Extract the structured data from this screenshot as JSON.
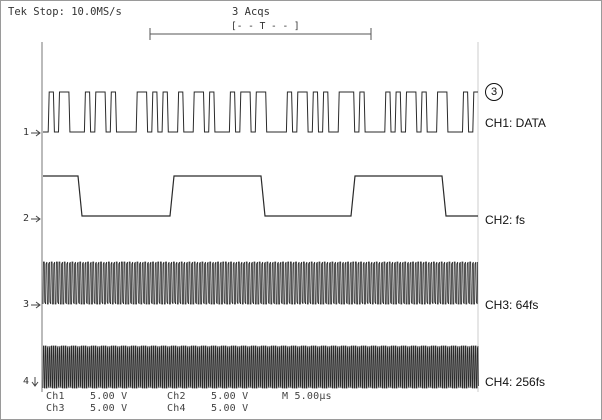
{
  "header": {
    "status": "Tek Stop: 10.0MS/s",
    "acquisitions": "3 Acqs",
    "trigger_marker": "[- - T - - ]"
  },
  "badge": "3",
  "channels": [
    {
      "number": "1",
      "label": "CH1: DATA"
    },
    {
      "number": "2",
      "label": "CH2: fs"
    },
    {
      "number": "3",
      "label": "CH3: 64fs"
    },
    {
      "number": "4",
      "label": "CH4: 256fs"
    }
  ],
  "footer": {
    "ch1": "Ch1",
    "ch1_scale": "5.00 V",
    "ch2": "Ch2",
    "ch2_scale": "5.00 V",
    "ch3": "Ch3",
    "ch3_scale": "5.00 V",
    "ch4": "Ch4",
    "ch4_scale": "5.00 V",
    "timebase": "M 5.00µs"
  },
  "colors": {
    "trace": "#2a2a2a",
    "border": "#9a9a9a"
  }
}
